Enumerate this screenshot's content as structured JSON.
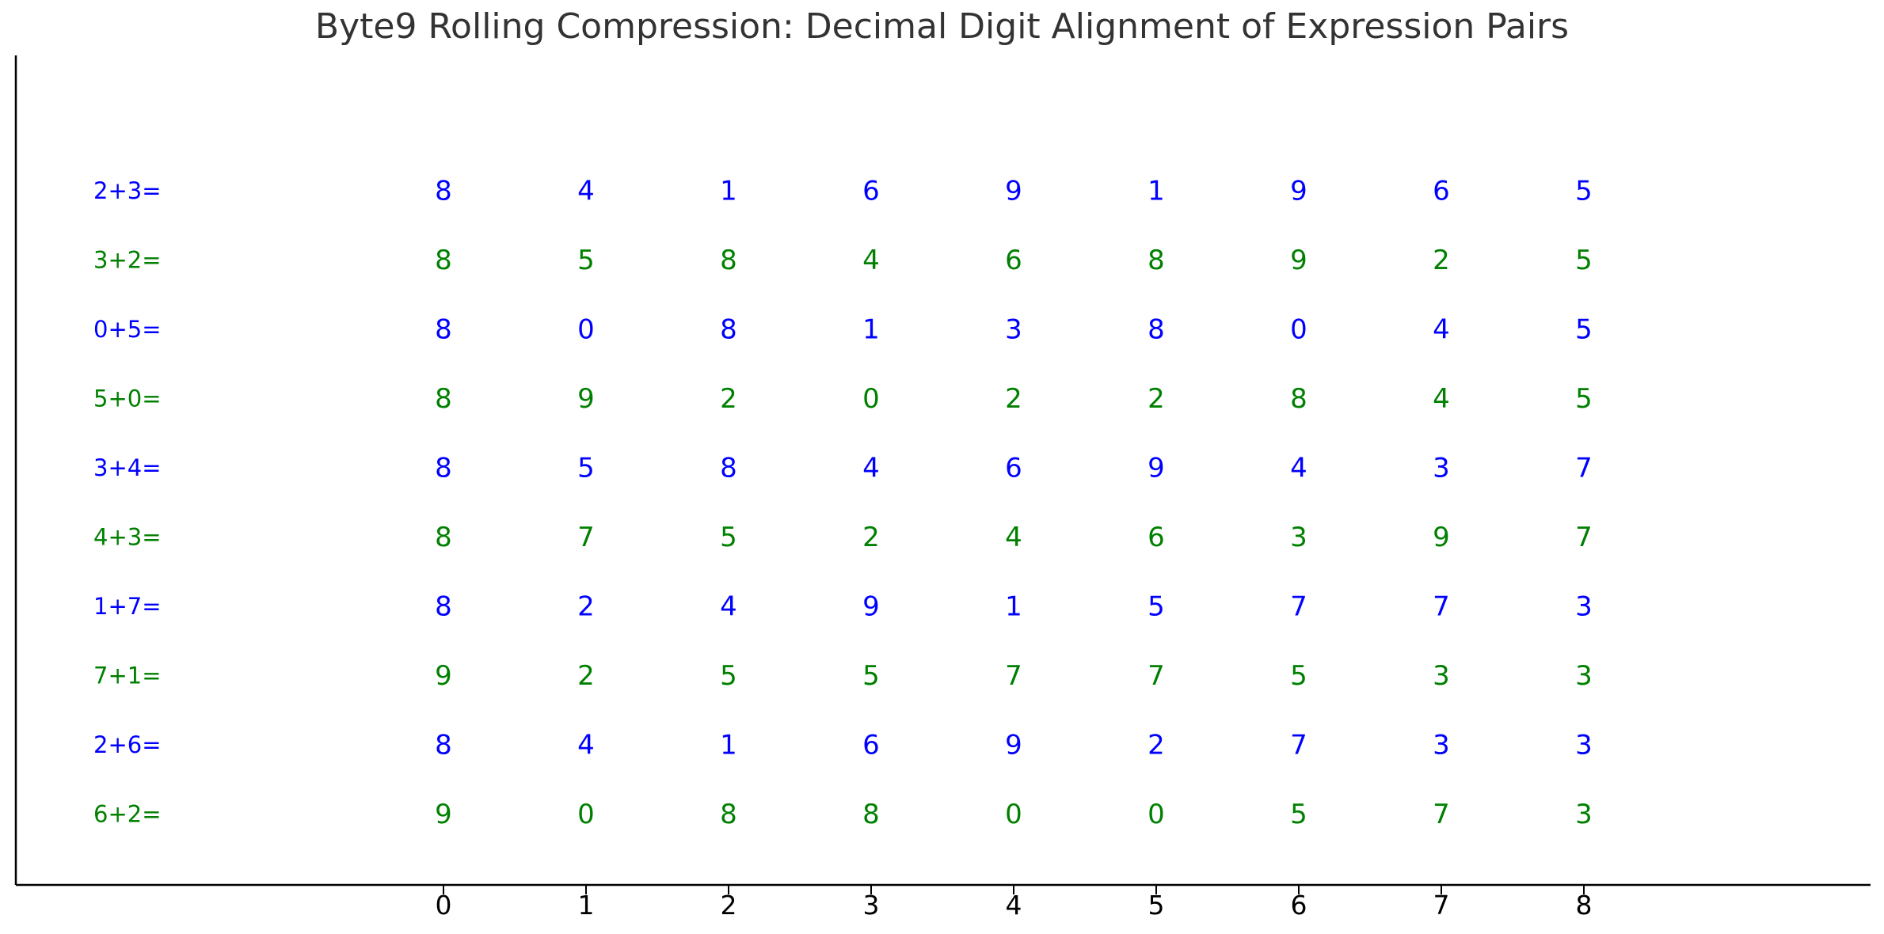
{
  "chart_data": {
    "type": "table",
    "title": "Byte9 Rolling Compression: Decimal Digit Alignment of Expression Pairs",
    "xlabel": "",
    "ylabel": "",
    "x_ticks": [
      "0",
      "1",
      "2",
      "3",
      "4",
      "5",
      "6",
      "7",
      "8"
    ],
    "grid": false,
    "colors": {
      "odd_rows": "#0000ff",
      "even_rows": "#008000"
    },
    "rows": [
      {
        "label": "2+3=",
        "color": "#0000ff",
        "digits": [
          "8",
          "4",
          "1",
          "6",
          "9",
          "1",
          "9",
          "6",
          "5"
        ]
      },
      {
        "label": "3+2=",
        "color": "#008000",
        "digits": [
          "8",
          "5",
          "8",
          "4",
          "6",
          "8",
          "9",
          "2",
          "5"
        ]
      },
      {
        "label": "0+5=",
        "color": "#0000ff",
        "digits": [
          "8",
          "0",
          "8",
          "1",
          "3",
          "8",
          "0",
          "4",
          "5"
        ]
      },
      {
        "label": "5+0=",
        "color": "#008000",
        "digits": [
          "8",
          "9",
          "2",
          "0",
          "2",
          "2",
          "8",
          "4",
          "5"
        ]
      },
      {
        "label": "3+4=",
        "color": "#0000ff",
        "digits": [
          "8",
          "5",
          "8",
          "4",
          "6",
          "9",
          "4",
          "3",
          "7"
        ]
      },
      {
        "label": "4+3=",
        "color": "#008000",
        "digits": [
          "8",
          "7",
          "5",
          "2",
          "4",
          "6",
          "3",
          "9",
          "7"
        ]
      },
      {
        "label": "1+7=",
        "color": "#0000ff",
        "digits": [
          "8",
          "2",
          "4",
          "9",
          "1",
          "5",
          "7",
          "7",
          "3"
        ]
      },
      {
        "label": "7+1=",
        "color": "#008000",
        "digits": [
          "9",
          "2",
          "5",
          "5",
          "7",
          "7",
          "5",
          "3",
          "3"
        ]
      },
      {
        "label": "2+6=",
        "color": "#0000ff",
        "digits": [
          "8",
          "4",
          "1",
          "6",
          "9",
          "2",
          "7",
          "3",
          "3"
        ]
      },
      {
        "label": "6+2=",
        "color": "#008000",
        "digits": [
          "9",
          "0",
          "8",
          "8",
          "0",
          "0",
          "5",
          "7",
          "3"
        ]
      }
    ]
  }
}
